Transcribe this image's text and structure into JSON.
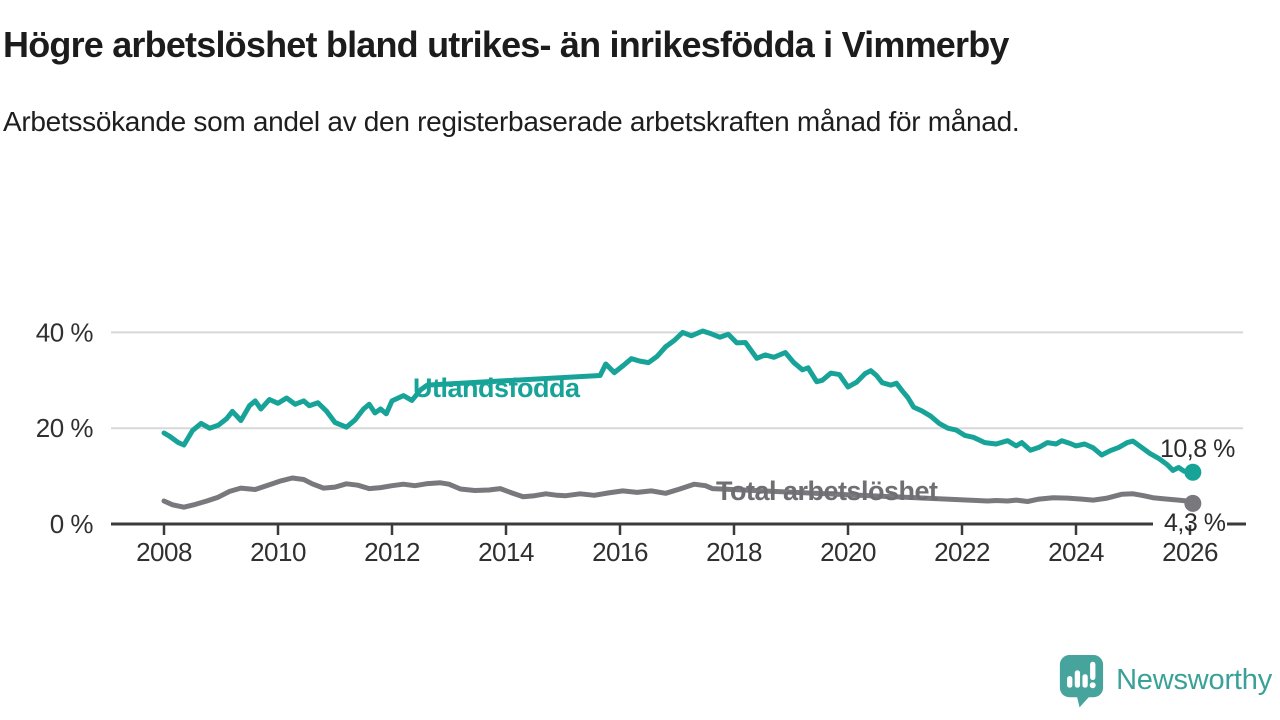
{
  "header": {
    "title": "Högre arbetslöshet bland utrikes- än inrikesfödda i Vimmerby",
    "subtitle": "Arbetssökande som andel av den registerbaserade arbetskraften månad för månad."
  },
  "branding": {
    "logo_text": "Newsworthy",
    "icon_color": "#47a49c",
    "text_color": "#3aa198"
  },
  "chart_data": {
    "type": "line",
    "title": "Högre arbetslöshet bland utrikes- än inrikesfödda i Vimmerby",
    "subtitle": "Arbetssökande som andel av den registerbaserade arbetskraften månad för månad.",
    "grid": "horizontal",
    "legend_position": "inline-labels",
    "x_axis": {
      "range": [
        2007.05,
        2026.95
      ],
      "ticks": [
        2008,
        2010,
        2012,
        2014,
        2016,
        2018,
        2020,
        2022,
        2024,
        2026
      ],
      "labels": [
        "2008",
        "2010",
        "2012",
        "2014",
        "2016",
        "2018",
        "2020",
        "2022",
        "2024",
        "2026"
      ]
    },
    "y_axis": {
      "range": [
        0,
        43
      ],
      "ticks": [
        0,
        20,
        40
      ],
      "labels": [
        "0 %",
        "20 %",
        "40 %"
      ],
      "unit": "%"
    },
    "series": [
      {
        "name": "Utlandsfödda",
        "color": "#18a399",
        "end_label": "10,8 %",
        "end_value": 10.8,
        "label_gap_years": [
          2012.63,
          2015.64
        ],
        "points": [
          [
            2008.0,
            19.0
          ],
          [
            2008.1,
            18.3
          ],
          [
            2008.25,
            17.0
          ],
          [
            2008.35,
            16.5
          ],
          [
            2008.5,
            19.5
          ],
          [
            2008.65,
            21.0
          ],
          [
            2008.8,
            20.0
          ],
          [
            2008.95,
            20.6
          ],
          [
            2009.1,
            22.0
          ],
          [
            2009.2,
            23.5
          ],
          [
            2009.35,
            21.6
          ],
          [
            2009.5,
            24.7
          ],
          [
            2009.6,
            25.7
          ],
          [
            2009.7,
            24.0
          ],
          [
            2009.85,
            26.0
          ],
          [
            2010.0,
            25.2
          ],
          [
            2010.15,
            26.3
          ],
          [
            2010.3,
            25.0
          ],
          [
            2010.45,
            25.7
          ],
          [
            2010.55,
            24.7
          ],
          [
            2010.7,
            25.3
          ],
          [
            2010.85,
            23.6
          ],
          [
            2011.0,
            21.2
          ],
          [
            2011.1,
            20.7
          ],
          [
            2011.2,
            20.2
          ],
          [
            2011.35,
            21.7
          ],
          [
            2011.5,
            24.0
          ],
          [
            2011.6,
            25.0
          ],
          [
            2011.7,
            23.2
          ],
          [
            2011.8,
            24.0
          ],
          [
            2011.9,
            23.0
          ],
          [
            2012.0,
            25.7
          ],
          [
            2012.2,
            26.8
          ],
          [
            2012.35,
            25.8
          ],
          [
            2012.5,
            28.0
          ],
          [
            2012.62,
            29.0
          ],
          [
            2015.65,
            31.0
          ],
          [
            2015.75,
            33.4
          ],
          [
            2015.9,
            31.6
          ],
          [
            2016.05,
            33.0
          ],
          [
            2016.2,
            34.5
          ],
          [
            2016.35,
            34.0
          ],
          [
            2016.5,
            33.7
          ],
          [
            2016.65,
            35.0
          ],
          [
            2016.8,
            37.0
          ],
          [
            2016.95,
            38.3
          ],
          [
            2017.1,
            40.0
          ],
          [
            2017.25,
            39.3
          ],
          [
            2017.45,
            40.3
          ],
          [
            2017.6,
            39.7
          ],
          [
            2017.75,
            39.0
          ],
          [
            2017.9,
            39.6
          ],
          [
            2018.05,
            37.8
          ],
          [
            2018.2,
            37.9
          ],
          [
            2018.4,
            34.6
          ],
          [
            2018.55,
            35.3
          ],
          [
            2018.7,
            34.8
          ],
          [
            2018.9,
            35.8
          ],
          [
            2019.05,
            33.7
          ],
          [
            2019.2,
            32.2
          ],
          [
            2019.3,
            32.6
          ],
          [
            2019.45,
            29.7
          ],
          [
            2019.55,
            30.0
          ],
          [
            2019.7,
            31.5
          ],
          [
            2019.85,
            31.2
          ],
          [
            2020.0,
            28.6
          ],
          [
            2020.15,
            29.6
          ],
          [
            2020.3,
            31.4
          ],
          [
            2020.4,
            32.0
          ],
          [
            2020.5,
            31.0
          ],
          [
            2020.6,
            29.5
          ],
          [
            2020.75,
            29.0
          ],
          [
            2020.85,
            29.4
          ],
          [
            2020.95,
            27.8
          ],
          [
            2021.05,
            26.4
          ],
          [
            2021.15,
            24.4
          ],
          [
            2021.3,
            23.6
          ],
          [
            2021.45,
            22.5
          ],
          [
            2021.6,
            21.0
          ],
          [
            2021.75,
            20.0
          ],
          [
            2021.9,
            19.6
          ],
          [
            2022.05,
            18.5
          ],
          [
            2022.2,
            18.1
          ],
          [
            2022.4,
            17.0
          ],
          [
            2022.6,
            16.7
          ],
          [
            2022.8,
            17.4
          ],
          [
            2022.95,
            16.3
          ],
          [
            2023.05,
            17.0
          ],
          [
            2023.2,
            15.4
          ],
          [
            2023.35,
            16.0
          ],
          [
            2023.5,
            17.0
          ],
          [
            2023.65,
            16.7
          ],
          [
            2023.75,
            17.4
          ],
          [
            2023.9,
            16.8
          ],
          [
            2024.0,
            16.3
          ],
          [
            2024.15,
            16.7
          ],
          [
            2024.3,
            15.9
          ],
          [
            2024.45,
            14.4
          ],
          [
            2024.6,
            15.3
          ],
          [
            2024.75,
            16.0
          ],
          [
            2024.9,
            17.0
          ],
          [
            2025.0,
            17.3
          ],
          [
            2025.15,
            16.0
          ],
          [
            2025.3,
            14.7
          ],
          [
            2025.45,
            13.7
          ],
          [
            2025.6,
            12.4
          ],
          [
            2025.7,
            11.2
          ],
          [
            2025.8,
            11.8
          ],
          [
            2025.9,
            11.0
          ],
          [
            2026.05,
            10.8
          ]
        ]
      },
      {
        "name": "Total arbetslöshet",
        "color": "#79797d",
        "end_label": "4,3 %",
        "end_value": 4.3,
        "label_gap_years": [
          2017.63,
          2022.44
        ],
        "points": [
          [
            2008.0,
            4.8
          ],
          [
            2008.15,
            4.0
          ],
          [
            2008.35,
            3.5
          ],
          [
            2008.55,
            4.1
          ],
          [
            2008.75,
            4.8
          ],
          [
            2008.95,
            5.6
          ],
          [
            2009.15,
            6.8
          ],
          [
            2009.35,
            7.5
          ],
          [
            2009.6,
            7.2
          ],
          [
            2009.85,
            8.2
          ],
          [
            2010.05,
            9.0
          ],
          [
            2010.25,
            9.6
          ],
          [
            2010.45,
            9.3
          ],
          [
            2010.6,
            8.4
          ],
          [
            2010.8,
            7.5
          ],
          [
            2011.0,
            7.7
          ],
          [
            2011.2,
            8.4
          ],
          [
            2011.4,
            8.1
          ],
          [
            2011.6,
            7.4
          ],
          [
            2011.8,
            7.6
          ],
          [
            2012.0,
            8.0
          ],
          [
            2012.2,
            8.3
          ],
          [
            2012.4,
            8.0
          ],
          [
            2012.6,
            8.4
          ],
          [
            2012.85,
            8.6
          ],
          [
            2013.0,
            8.3
          ],
          [
            2013.2,
            7.3
          ],
          [
            2013.45,
            7.0
          ],
          [
            2013.7,
            7.1
          ],
          [
            2013.9,
            7.4
          ],
          [
            2014.1,
            6.5
          ],
          [
            2014.3,
            5.7
          ],
          [
            2014.5,
            5.9
          ],
          [
            2014.7,
            6.3
          ],
          [
            2014.9,
            6.0
          ],
          [
            2015.05,
            5.9
          ],
          [
            2015.3,
            6.3
          ],
          [
            2015.55,
            6.0
          ],
          [
            2015.8,
            6.5
          ],
          [
            2016.05,
            6.9
          ],
          [
            2016.3,
            6.6
          ],
          [
            2016.55,
            6.9
          ],
          [
            2016.8,
            6.4
          ],
          [
            2017.05,
            7.3
          ],
          [
            2017.3,
            8.3
          ],
          [
            2017.5,
            8.0
          ],
          [
            2017.62,
            7.4
          ],
          [
            2022.45,
            4.8
          ],
          [
            2022.6,
            4.9
          ],
          [
            2022.8,
            4.8
          ],
          [
            2022.95,
            5.0
          ],
          [
            2023.15,
            4.7
          ],
          [
            2023.35,
            5.2
          ],
          [
            2023.6,
            5.5
          ],
          [
            2023.85,
            5.4
          ],
          [
            2024.1,
            5.2
          ],
          [
            2024.3,
            5.0
          ],
          [
            2024.55,
            5.4
          ],
          [
            2024.8,
            6.2
          ],
          [
            2025.0,
            6.3
          ],
          [
            2025.15,
            6.0
          ],
          [
            2025.35,
            5.5
          ],
          [
            2025.6,
            5.2
          ],
          [
            2025.8,
            5.0
          ],
          [
            2025.95,
            4.8
          ],
          [
            2026.05,
            4.3
          ]
        ]
      }
    ]
  }
}
